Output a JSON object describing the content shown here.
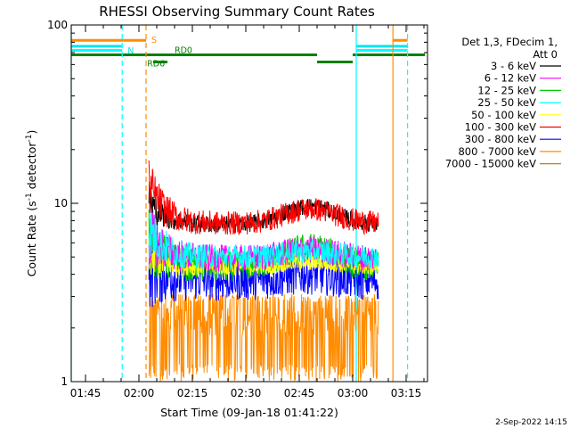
{
  "chart_data": {
    "type": "line",
    "title": "RHESSI Observing Summary Count Rates",
    "xlabel": "Start Time (09-Jan-18 01:41:22)",
    "ylabel": "Count Rate (s",
    "ylabel_sup": "-1",
    "ylabel_tail": " detector",
    "ylabel_sup2": "-1",
    "ylabel_close": ")",
    "yscale": "log",
    "xlim_minutes": [
      101,
      201
    ],
    "ylim": [
      1,
      100
    ],
    "x_ticks": [
      {
        "t": 105,
        "label": "01:45"
      },
      {
        "t": 120,
        "label": "02:00"
      },
      {
        "t": 135,
        "label": "02:15"
      },
      {
        "t": 150,
        "label": "02:30"
      },
      {
        "t": 165,
        "label": "02:45"
      },
      {
        "t": 180,
        "label": "03:00"
      },
      {
        "t": 195,
        "label": "03:15"
      }
    ],
    "y_ticks": [
      {
        "v": 1,
        "label": "1"
      },
      {
        "v": 10,
        "label": "10"
      },
      {
        "v": 100,
        "label": "100"
      }
    ],
    "legend_header": [
      "Det 1,3, FDecim 1,",
      "Att 0"
    ],
    "legend_placement": "right",
    "series": [
      {
        "name": "3 - 6 keV",
        "color": "#000000",
        "t_start": 122.8,
        "t_end": 187.2,
        "early_level": 10.5,
        "level": 7.6,
        "hump": 2.0,
        "jitter": 0.05
      },
      {
        "name": "6 - 12 keV",
        "color": "#ff00ff",
        "t_start": 122.8,
        "t_end": 187.2,
        "early_level": 6.8,
        "level": 4.9,
        "hump": 0.6,
        "jitter": 0.08
      },
      {
        "name": "12 - 25 keV",
        "color": "#00cc00",
        "t_start": 122.8,
        "t_end": 187.2,
        "early_level": 6.2,
        "level": 4.4,
        "hump": 1.2,
        "jitter": 0.09
      },
      {
        "name": "25 - 50 keV",
        "color": "#00ffff",
        "t_start": 122.8,
        "t_end": 187.2,
        "early_level": 7.2,
        "level": 5.0,
        "hump": 0.4,
        "jitter": 0.07
      },
      {
        "name": "50 - 100 keV",
        "color": "#ffff00",
        "t_start": 122.8,
        "t_end": 187.2,
        "early_level": 5.0,
        "level": 4.4,
        "hump": 0.3,
        "jitter": 0.05
      },
      {
        "name": "100 - 300 keV",
        "color": "#ff0000",
        "t_start": 122.8,
        "t_end": 187.2,
        "early_level": 12.5,
        "level": 7.7,
        "hump": 1.6,
        "jitter": 0.07
      },
      {
        "name": "300 - 800 keV",
        "color": "#0000ff",
        "t_start": 122.8,
        "t_end": 187.2,
        "early_level": 4.8,
        "level": 3.7,
        "hump": 0.3,
        "jitter": 0.12
      },
      {
        "name": "800 - 7000 keV",
        "color": "#ff8c00",
        "t_start": 122.8,
        "t_end": 187.2,
        "early_level": 3.0,
        "level": 2.2,
        "hump": 0.0,
        "jitter": 0.45
      },
      {
        "name": "7000 - 15000 keV",
        "color": "#b8860b",
        "t_start": 122.8,
        "t_end": 187.2,
        "early_level": 0,
        "level": 0,
        "hump": 0,
        "jitter": 0
      }
    ],
    "flag_bars": [
      {
        "label": "S",
        "color": "#ff8c00",
        "level": 82,
        "segments": [
          [
            101,
            122.0
          ],
          [
            191.3,
            195.4
          ]
        ]
      },
      {
        "label": "N",
        "color": "#00e5ee",
        "level": 76,
        "segments": [
          [
            101,
            115.3
          ],
          [
            181.0,
            195.4
          ]
        ]
      },
      {
        "label": "",
        "color": "#00ffff",
        "level": 72,
        "segments": [
          [
            101,
            115.3
          ],
          [
            181.0,
            195.4
          ]
        ]
      },
      {
        "label": "RD0",
        "color": "#008000",
        "level": 68,
        "segments": [
          [
            101,
            170.0
          ],
          [
            180.0,
            200.3
          ]
        ]
      },
      {
        "label": "RD6",
        "color": "#008000",
        "level": 62,
        "segments": [
          [
            124.0,
            128.0
          ],
          [
            170.0,
            180.0
          ]
        ]
      }
    ],
    "vertical_lines": [
      {
        "t": 101.0,
        "color": "#00ffff",
        "dashed": false
      },
      {
        "t": 115.3,
        "color": "#00ffff",
        "dashed": true
      },
      {
        "t": 122.0,
        "color": "#ff8c00",
        "dashed": true
      },
      {
        "t": 181.0,
        "color": "#00ffff",
        "dashed": false
      },
      {
        "t": 191.3,
        "color": "#ff8c00",
        "dashed": false
      },
      {
        "t": 195.4,
        "color": "#00ffff",
        "dashed": true
      }
    ],
    "timestamp": "2-Sep-2022 14:15"
  }
}
